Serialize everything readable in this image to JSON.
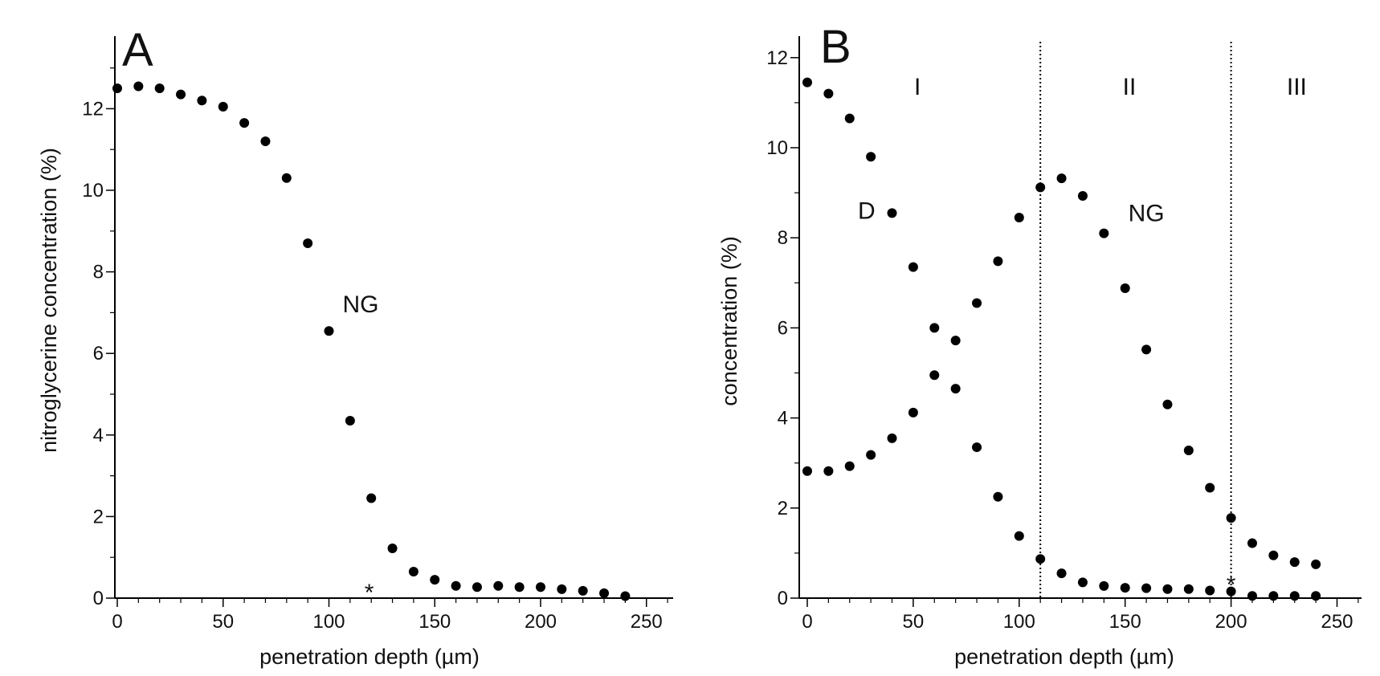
{
  "chart_data": [
    {
      "type": "scatter",
      "panel": "A",
      "xlabel": "penetration depth (µm)",
      "ylabel": "nitroglycerine concentration (%)",
      "xlim": [
        0,
        260
      ],
      "ylim": [
        0,
        13.5
      ],
      "xticks": [
        0,
        50,
        100,
        150,
        200,
        250
      ],
      "yticks": [
        0,
        2,
        4,
        6,
        8,
        10,
        12
      ],
      "series": [
        {
          "name": "NG",
          "x": [
            0,
            10,
            20,
            30,
            40,
            50,
            60,
            70,
            80,
            90,
            100,
            110,
            120,
            130,
            140,
            150,
            160,
            170,
            180,
            190,
            200,
            210,
            220,
            230,
            240
          ],
          "y": [
            12.5,
            12.55,
            12.5,
            12.35,
            12.2,
            12.05,
            11.65,
            11.2,
            10.3,
            8.7,
            6.55,
            4.35,
            2.45,
            1.22,
            0.65,
            0.45,
            0.3,
            0.27,
            0.3,
            0.27,
            0.27,
            0.22,
            0.18,
            0.12,
            0.05
          ]
        }
      ],
      "annotations": [
        {
          "text": "NG",
          "x": 115,
          "y": 7.2
        },
        {
          "text": "*",
          "x": 119,
          "y": 0.3
        }
      ]
    },
    {
      "type": "scatter",
      "panel": "B",
      "xlabel": "penetration depth (µm)",
      "ylabel": "concentration (%)",
      "xlim": [
        0,
        260
      ],
      "ylim": [
        0,
        12.5
      ],
      "xticks": [
        0,
        50,
        100,
        150,
        200,
        250
      ],
      "yticks": [
        0,
        2,
        4,
        6,
        8,
        10,
        12
      ],
      "series": [
        {
          "name": "D",
          "x": [
            0,
            10,
            20,
            30,
            40,
            50,
            60,
            70,
            80,
            90,
            100,
            110,
            120,
            130,
            140,
            150,
            160,
            170,
            180,
            190,
            200,
            210,
            220,
            230,
            240
          ],
          "y": [
            11.45,
            11.2,
            10.65,
            9.8,
            8.55,
            7.35,
            4.95,
            4.65,
            3.35,
            2.25,
            1.38,
            0.87,
            0.55,
            0.35,
            0.27,
            0.23,
            0.22,
            0.2,
            0.2,
            0.17,
            0.15,
            0.05,
            0.05,
            0.05,
            0.05
          ]
        },
        {
          "name": "NG",
          "x": [
            0,
            10,
            20,
            30,
            40,
            50,
            60,
            70,
            80,
            90,
            100,
            110,
            120,
            130,
            140,
            150,
            160,
            170,
            180,
            190,
            200,
            210,
            220,
            230,
            240
          ],
          "y": [
            2.82,
            2.82,
            2.93,
            3.18,
            3.55,
            4.12,
            6.0,
            5.72,
            6.55,
            7.48,
            8.45,
            9.12,
            9.32,
            8.93,
            8.1,
            6.88,
            5.52,
            4.3,
            3.28,
            2.45,
            1.78,
            1.22,
            0.95,
            0.8,
            0.75
          ]
        }
      ],
      "dividers": [
        110,
        200
      ],
      "regions": [
        {
          "label": "I",
          "x": 52
        },
        {
          "label": "II",
          "x": 152
        },
        {
          "label": "III",
          "x": 231
        }
      ],
      "annotations": [
        {
          "text": "D",
          "x": 28,
          "y": 8.6
        },
        {
          "text": "NG",
          "x": 160,
          "y": 8.55
        },
        {
          "text": "*",
          "x": 200,
          "y": 0.45
        }
      ]
    }
  ]
}
